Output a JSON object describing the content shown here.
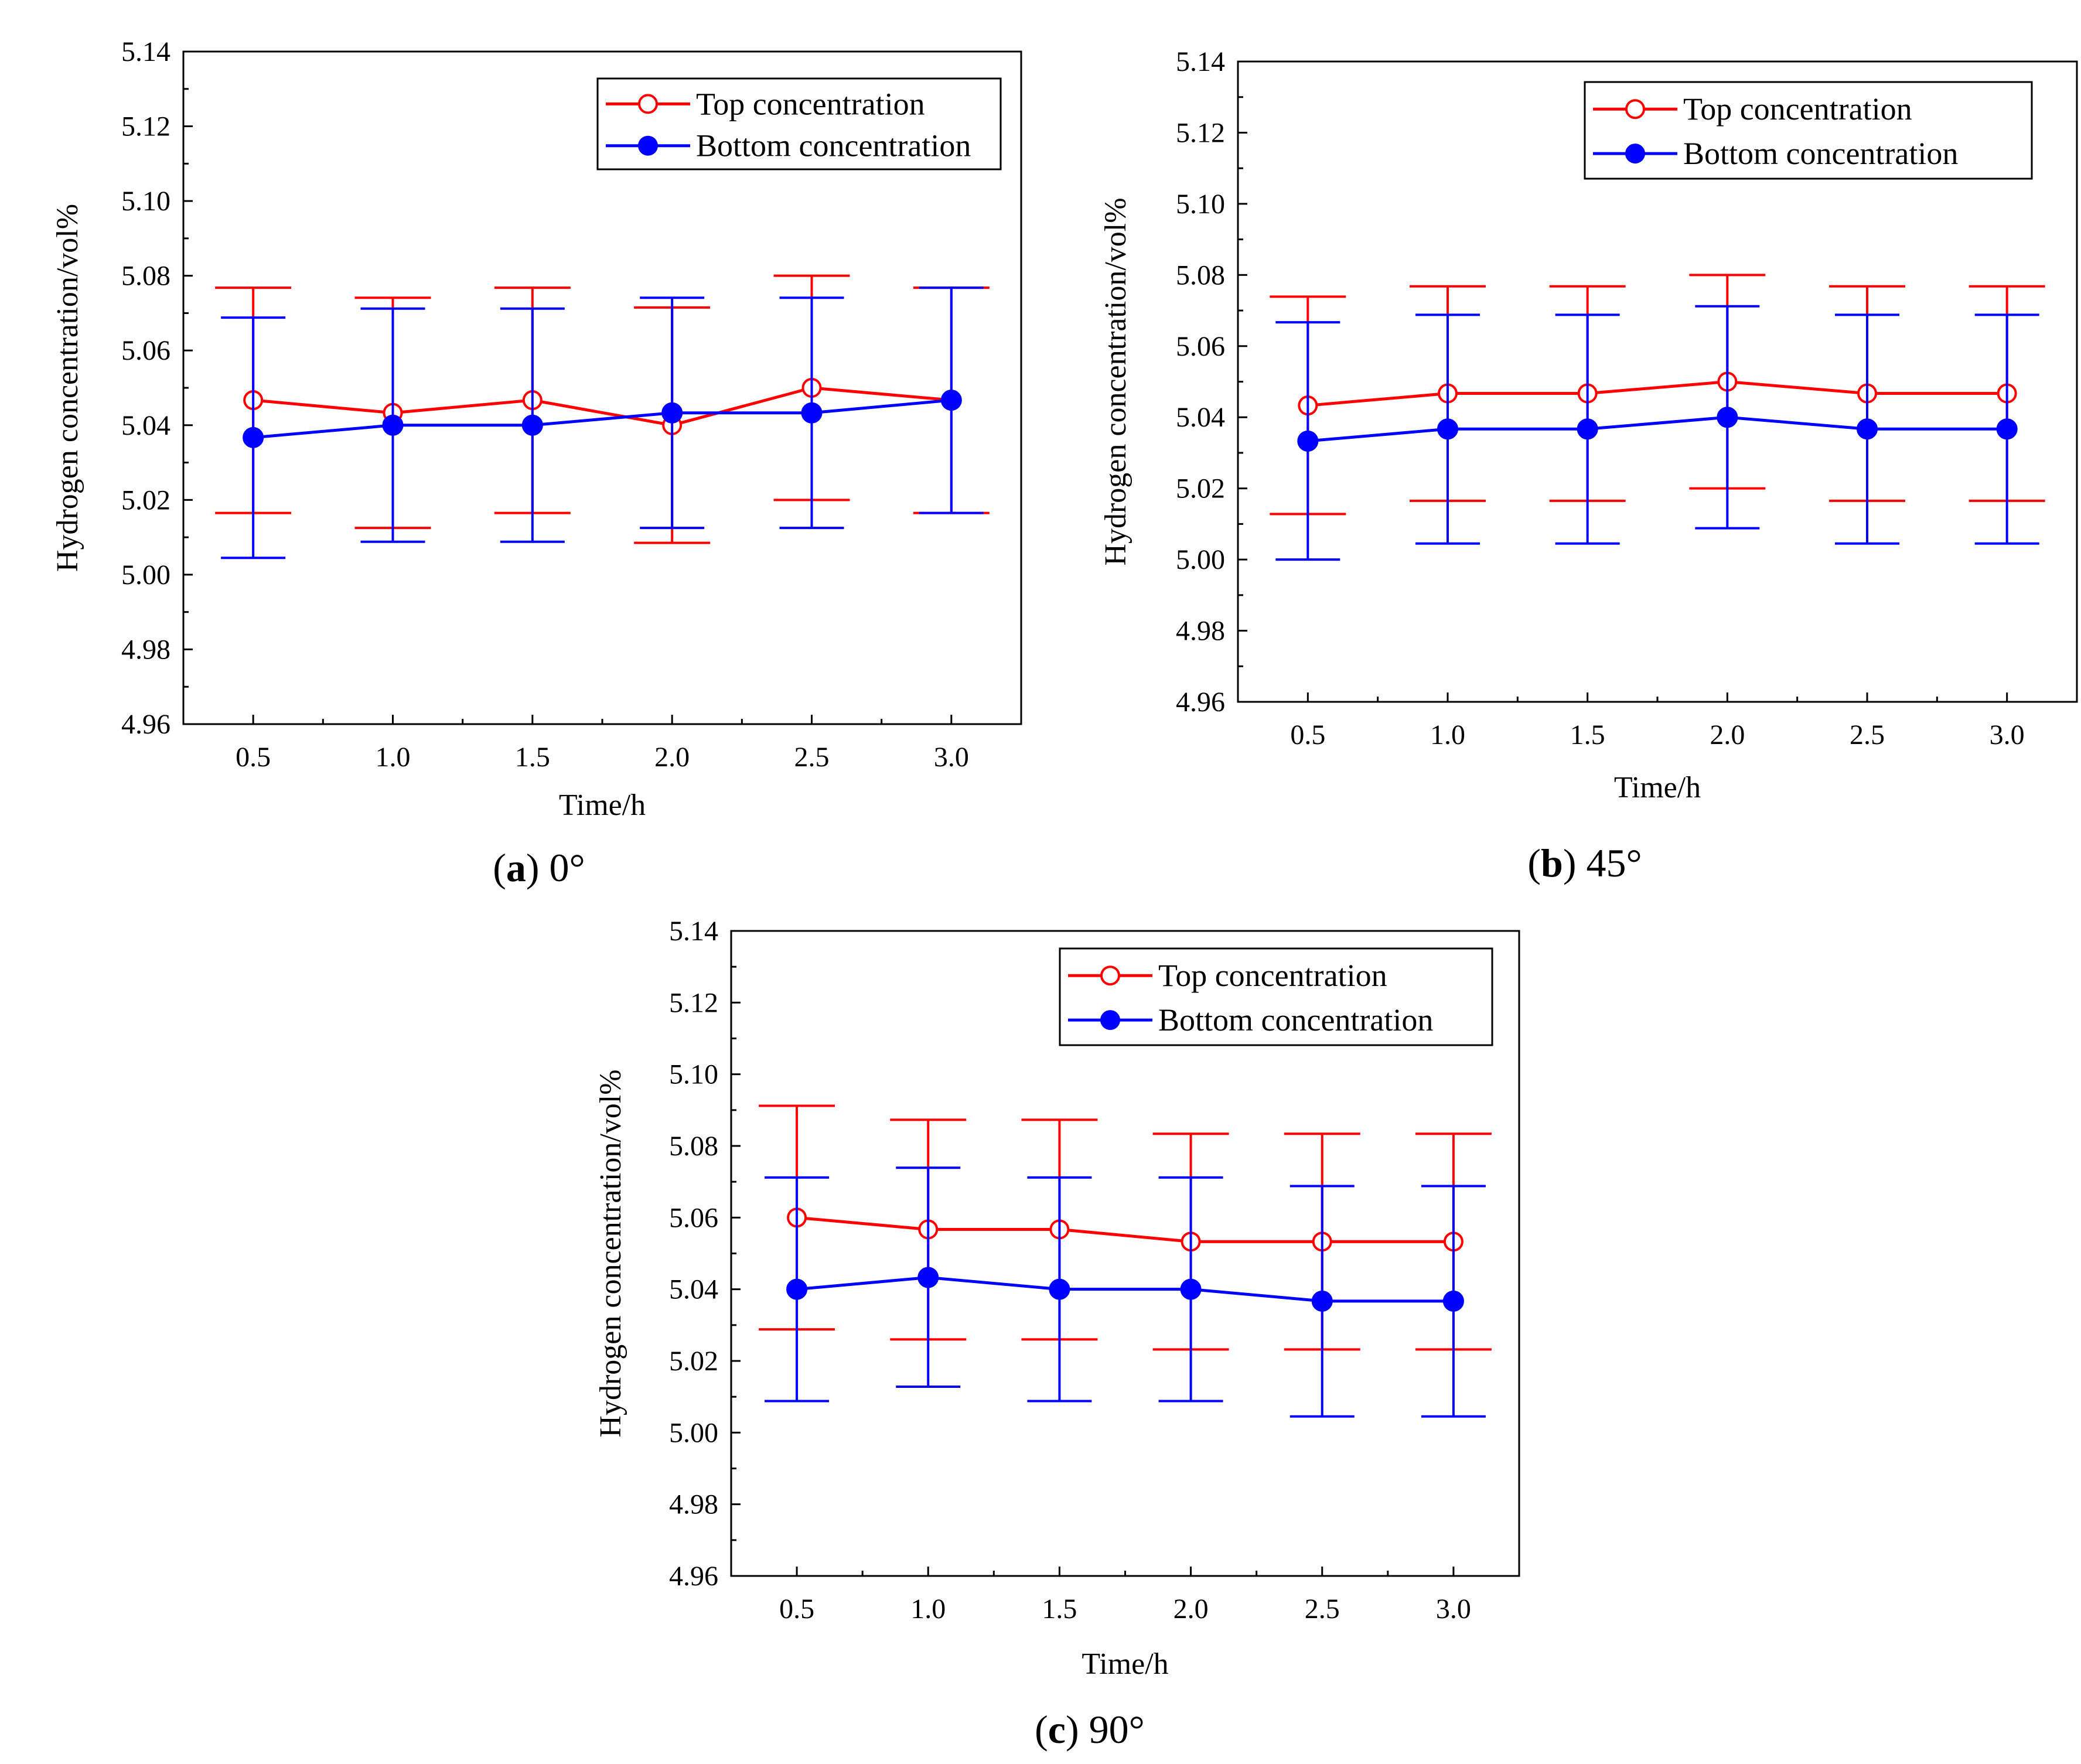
{
  "chart_data": [
    {
      "type": "line",
      "caption_letter": "a",
      "caption_text": "0°",
      "xlabel": "Time/h",
      "ylabel": "Hydrogen concentration/vol%",
      "xticks": [
        "0.5",
        "1.0",
        "1.5",
        "2.0",
        "2.5",
        "3.0"
      ],
      "yticks": [
        "4.96",
        "4.98",
        "5.00",
        "5.02",
        "5.04",
        "5.06",
        "5.08",
        "5.10",
        "5.12",
        "5.14"
      ],
      "ylim": [
        4.96,
        5.14
      ],
      "x": [
        0.5,
        1.0,
        1.5,
        2.0,
        2.5,
        3.0
      ],
      "legend_position": "top-right",
      "series": [
        {
          "name": "Top concentration",
          "color": "#ff0000",
          "marker": "open-circle",
          "values": [
            5.0467,
            5.0433,
            5.0467,
            5.04,
            5.05,
            5.0467
          ],
          "err_low": [
            5.0165,
            5.0125,
            5.0165,
            5.0085,
            5.02,
            5.0165
          ],
          "err_high": [
            5.0768,
            5.0741,
            5.0768,
            5.0715,
            5.08,
            5.0768
          ]
        },
        {
          "name": "Bottom concentration",
          "color": "#0000ff",
          "marker": "filled-circle",
          "values": [
            5.0367,
            5.04,
            5.04,
            5.0433,
            5.0433,
            5.0467
          ],
          "err_low": [
            5.0045,
            5.0088,
            5.0088,
            5.0125,
            5.0125,
            5.0165
          ],
          "err_high": [
            5.0688,
            5.0712,
            5.0712,
            5.0741,
            5.0741,
            5.0768
          ]
        }
      ]
    },
    {
      "type": "line",
      "caption_letter": "b",
      "caption_text": "45°",
      "xlabel": "Time/h",
      "ylabel": "Hydrogen concentration/vol%",
      "xticks": [
        "0.5",
        "1.0",
        "1.5",
        "2.0",
        "2.5",
        "3.0"
      ],
      "yticks": [
        "4.96",
        "4.98",
        "5.00",
        "5.02",
        "5.04",
        "5.06",
        "5.08",
        "5.10",
        "5.12",
        "5.14"
      ],
      "ylim": [
        4.96,
        5.14
      ],
      "x": [
        0.5,
        1.0,
        1.5,
        2.0,
        2.5,
        3.0
      ],
      "legend_position": "top-right",
      "series": [
        {
          "name": "Top concentration",
          "color": "#ff0000",
          "marker": "open-circle",
          "values": [
            5.0433,
            5.0467,
            5.0467,
            5.05,
            5.0467,
            5.0467
          ],
          "err_low": [
            5.0128,
            5.0165,
            5.0165,
            5.02,
            5.0165,
            5.0165
          ],
          "err_high": [
            5.0739,
            5.0768,
            5.0768,
            5.08,
            5.0768,
            5.0768
          ]
        },
        {
          "name": "Bottom concentration",
          "color": "#0000ff",
          "marker": "filled-circle",
          "values": [
            5.0333,
            5.0367,
            5.0367,
            5.04,
            5.0367,
            5.0367
          ],
          "err_low": [
            5.0,
            5.0045,
            5.0045,
            5.0088,
            5.0045,
            5.0045
          ],
          "err_high": [
            5.0667,
            5.0688,
            5.0688,
            5.0712,
            5.0688,
            5.0688
          ]
        }
      ]
    },
    {
      "type": "line",
      "caption_letter": "c",
      "caption_text": "90°",
      "xlabel": "Time/h",
      "ylabel": "Hydrogen concentration/vol%",
      "xticks": [
        "0.5",
        "1.0",
        "1.5",
        "2.0",
        "2.5",
        "3.0"
      ],
      "yticks": [
        "4.96",
        "4.98",
        "5.00",
        "5.02",
        "5.04",
        "5.06",
        "5.08",
        "5.10",
        "5.12",
        "5.14"
      ],
      "ylim": [
        4.96,
        5.14
      ],
      "x": [
        0.5,
        1.0,
        1.5,
        2.0,
        2.5,
        3.0
      ],
      "legend_position": "top-right",
      "series": [
        {
          "name": "Top concentration",
          "color": "#ff0000",
          "marker": "open-circle",
          "values": [
            5.06,
            5.0567,
            5.0567,
            5.0533,
            5.0533,
            5.0533
          ],
          "err_low": [
            5.0288,
            5.026,
            5.026,
            5.0232,
            5.0232,
            5.0232
          ],
          "err_high": [
            5.0912,
            5.0873,
            5.0873,
            5.0834,
            5.0834,
            5.0834
          ]
        },
        {
          "name": "Bottom concentration",
          "color": "#0000ff",
          "marker": "filled-circle",
          "values": [
            5.04,
            5.0433,
            5.04,
            5.04,
            5.0367,
            5.0367
          ],
          "err_low": [
            5.0088,
            5.0128,
            5.0088,
            5.0088,
            5.0045,
            5.0045
          ],
          "err_high": [
            5.0712,
            5.0739,
            5.0712,
            5.0712,
            5.0688,
            5.0688
          ]
        }
      ]
    }
  ]
}
